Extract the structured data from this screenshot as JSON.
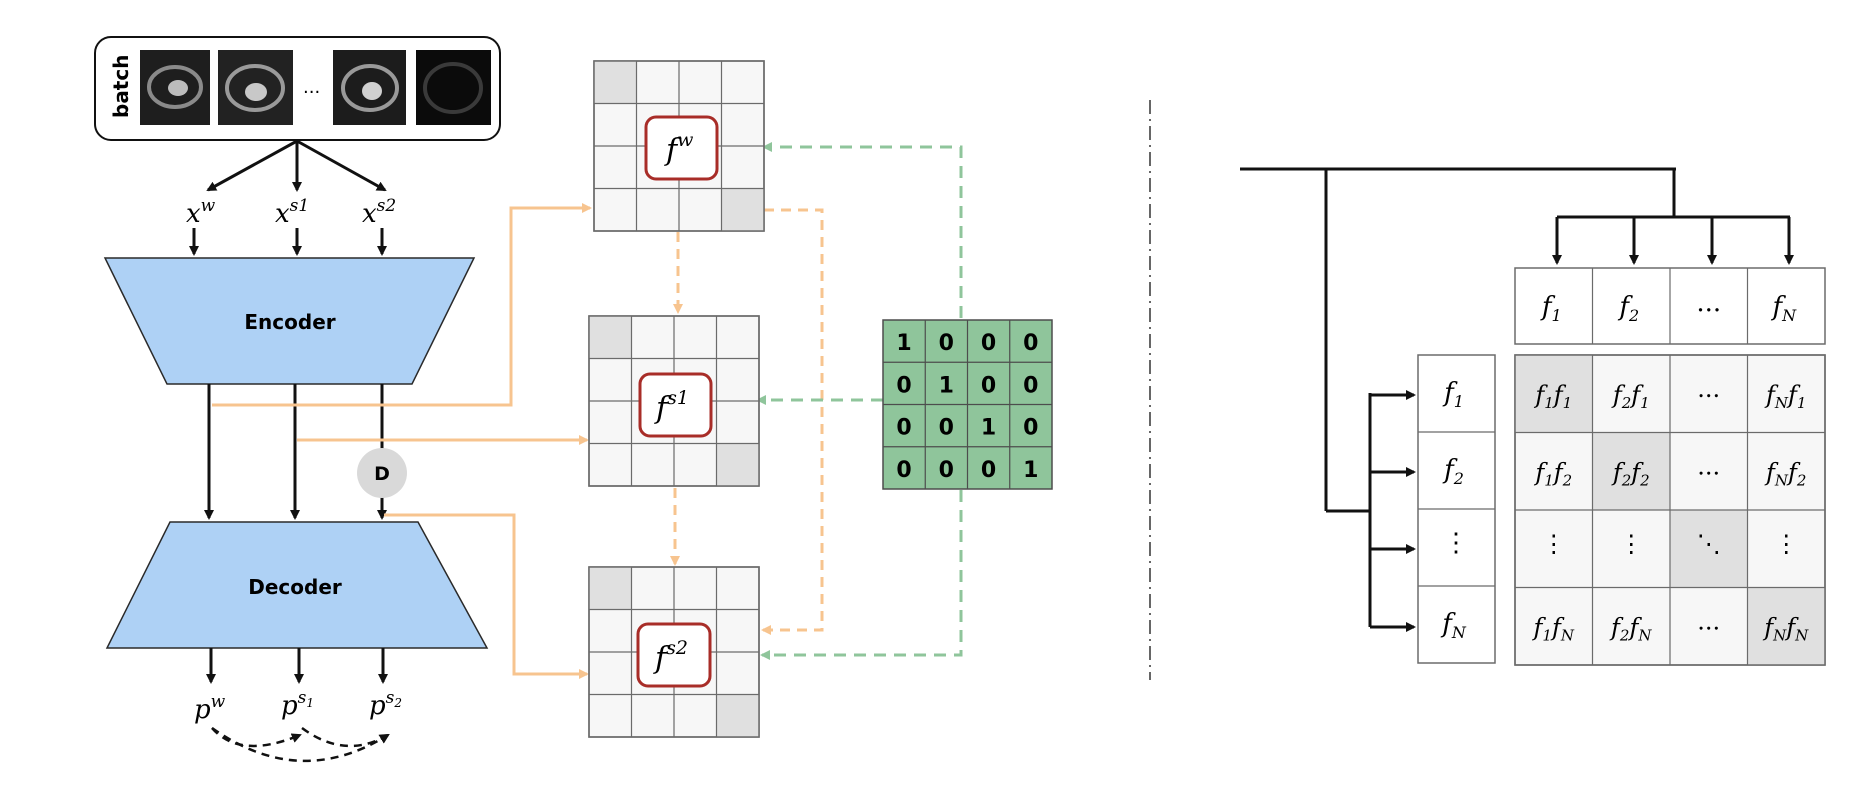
{
  "batch": {
    "label": "batch",
    "ellipsis": "..."
  },
  "inputs": {
    "xw": "x",
    "xw_sup": "w",
    "xs1": "x",
    "xs1_sup": "s1",
    "xs2": "x",
    "xs2_sup": "s2"
  },
  "encoder": {
    "label": "Encoder"
  },
  "decoder": {
    "label": "Decoder"
  },
  "dropout": {
    "label": "D"
  },
  "outputs": {
    "pw": "p",
    "pw_sup": "w",
    "ps1": "p",
    "ps1_sup": "s",
    "ps1_sub": "1",
    "ps2": "p",
    "ps2_sup": "s",
    "ps2_sub": "2"
  },
  "features": {
    "fw": "f",
    "fw_sup": "w",
    "fs1": "f",
    "fs1_sup": "s1",
    "fs2": "f",
    "fs2_sup": "s2"
  },
  "identity_matrix": {
    "rows": [
      [
        "1",
        "0",
        "0",
        "0"
      ],
      [
        "0",
        "1",
        "0",
        "0"
      ],
      [
        "0",
        "0",
        "1",
        "0"
      ],
      [
        "0",
        "0",
        "0",
        "1"
      ]
    ]
  },
  "right": {
    "top_row": [
      {
        "b": "f",
        "s": "1"
      },
      {
        "b": "f",
        "s": "2"
      },
      {
        "b": "...",
        "s": ""
      },
      {
        "b": "f",
        "s": "N"
      }
    ],
    "left_col": [
      {
        "b": "f",
        "s": "1"
      },
      {
        "b": "f",
        "s": "2"
      },
      {
        "b": "⋮",
        "s": ""
      },
      {
        "b": "f",
        "s": "N"
      }
    ],
    "grid": [
      [
        {
          "a": "f",
          "as": "1",
          "b": "f",
          "bs": "1"
        },
        {
          "a": "f",
          "as": "2",
          "b": "f",
          "bs": "1"
        },
        {
          "t": "..."
        },
        {
          "a": "f",
          "as": "N",
          "b": "f",
          "bs": "1"
        }
      ],
      [
        {
          "a": "f",
          "as": "1",
          "b": "f",
          "bs": "2"
        },
        {
          "a": "f",
          "as": "2",
          "b": "f",
          "bs": "2"
        },
        {
          "t": "..."
        },
        {
          "a": "f",
          "as": "N",
          "b": "f",
          "bs": "2"
        }
      ],
      [
        {
          "t": "⋮"
        },
        {
          "t": "⋮"
        },
        {
          "t": "⋱"
        },
        {
          "t": "⋮"
        }
      ],
      [
        {
          "a": "f",
          "as": "1",
          "b": "f",
          "bs": "N"
        },
        {
          "a": "f",
          "as": "2",
          "b": "f",
          "bs": "N"
        },
        {
          "t": "..."
        },
        {
          "a": "f",
          "as": "N",
          "b": "f",
          "bs": "N"
        }
      ]
    ]
  },
  "colors": {
    "encoder_fill": "#aed1f5",
    "matrix_fill": "#8fc59b",
    "orange": "#f7c48f",
    "green_dash": "#8fc59b",
    "feature_border": "#a82d28",
    "shade": "#e0e0e0"
  }
}
